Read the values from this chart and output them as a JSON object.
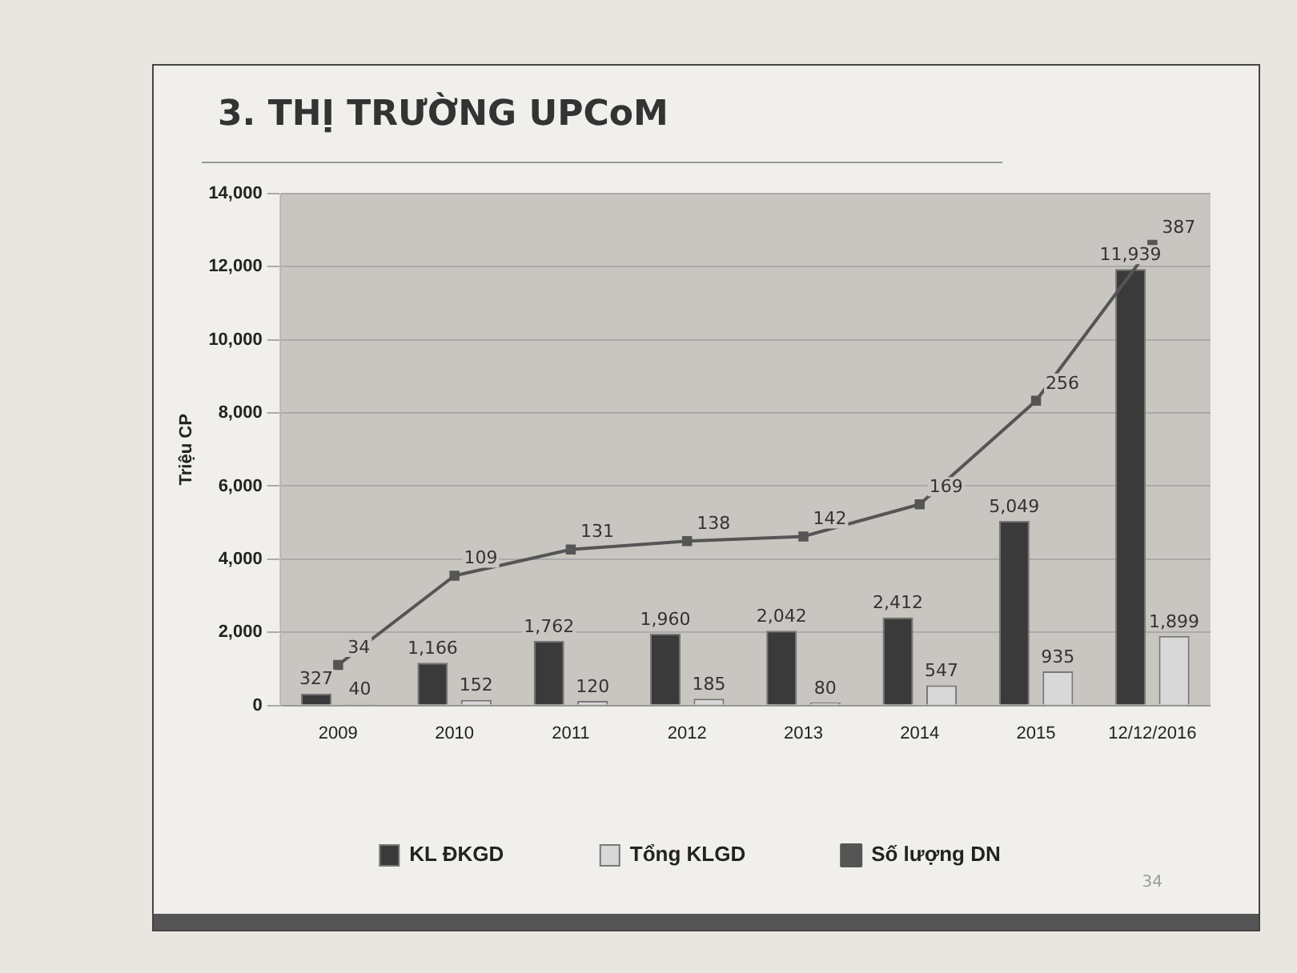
{
  "chart_data": {
    "type": "bar",
    "title": "3. THỊ TRƯỜNG UPCoM",
    "ylabel": "Triệu CP",
    "categories": [
      "2009",
      "2010",
      "2011",
      "2012",
      "2013",
      "2014",
      "2015",
      "12/12/2016"
    ],
    "series": [
      {
        "name": "KL ĐKGD",
        "color": "#3a3a3a",
        "values": [
          327,
          1166,
          1762,
          1960,
          2042,
          2412,
          5049,
          11939
        ],
        "value_labels": [
          "327",
          "1,166",
          "1,762",
          "1,960",
          "2,042",
          "2,412",
          "5,049",
          "11,939"
        ]
      },
      {
        "name": "Tổng KLGD",
        "color": "#d8d8d8",
        "values": [
          40,
          152,
          120,
          185,
          80,
          547,
          935,
          1899
        ],
        "value_labels": [
          "40",
          "152",
          "120",
          "185",
          "80",
          "547",
          "935",
          "1,899"
        ]
      },
      {
        "name": "Số lượng DN",
        "type": "line",
        "axis": "y2",
        "color": "#555555",
        "values": [
          34,
          109,
          131,
          138,
          142,
          169,
          256,
          387
        ],
        "value_labels": [
          "34",
          "109",
          "131",
          "138",
          "142",
          "169",
          "256",
          "387"
        ]
      }
    ],
    "ylim": [
      0,
      14000
    ],
    "yticks": [
      0,
      {
        "value": 2000,
        "label": "2,000"
      },
      {
        "value": 4000,
        "label": "4,000"
      },
      {
        "value": 6000,
        "label": "6,000"
      },
      {
        "value": 8000,
        "label": "8,000"
      },
      {
        "value": 10000,
        "label": "10,000"
      },
      {
        "value": 12000,
        "label": "12,000"
      },
      {
        "value": 14000,
        "label": "14,000"
      }
    ],
    "y2lim": [
      0,
      430
    ],
    "grid": "y",
    "legend": "bottom",
    "marker": "square",
    "annotations": [
      "34"
    ]
  }
}
